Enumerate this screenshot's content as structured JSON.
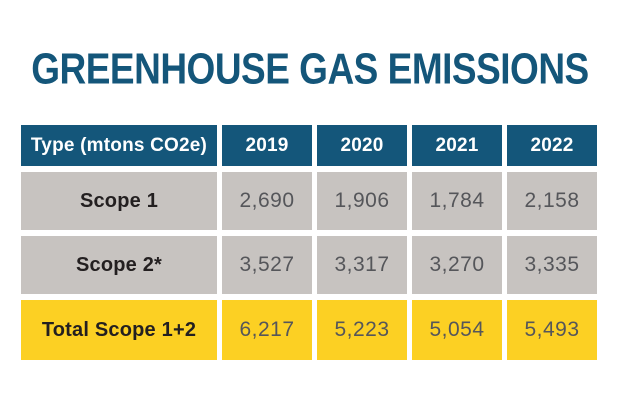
{
  "title": "GREENHOUSE GAS EMISSIONS",
  "colors": {
    "bg": "#FFFFFF",
    "navy": "#14567A",
    "gray": "#C7C3C0",
    "yellow": "#FCD023",
    "labelText": "#231F20",
    "valueText": "#55565A",
    "headerText": "#FFFFFF"
  },
  "table": {
    "header": [
      "Type (mtons CO2e)",
      "2019",
      "2020",
      "2021",
      "2022"
    ],
    "rows": [
      {
        "label": "Scope 1",
        "values": [
          "2,690",
          "1,906",
          "1,784",
          "2,158"
        ]
      },
      {
        "label": "Scope 2*",
        "values": [
          "3,527",
          "3,317",
          "3,270",
          "3,335"
        ]
      },
      {
        "label": "Total Scope 1+2",
        "values": [
          "6,217",
          "5,223",
          "5,054",
          "5,493"
        ]
      }
    ]
  },
  "chart_data": {
    "type": "table",
    "title": "GREENHOUSE GAS EMISSIONS",
    "units": "mtons CO2e",
    "columns": [
      "Type (mtons CO2e)",
      "2019",
      "2020",
      "2021",
      "2022"
    ],
    "rows": [
      {
        "label": "Scope 1",
        "values": [
          2690,
          1906,
          1784,
          2158
        ]
      },
      {
        "label": "Scope 2*",
        "values": [
          3527,
          3317,
          3270,
          3335
        ]
      },
      {
        "label": "Total Scope 1+2",
        "values": [
          6217,
          5223,
          5054,
          5493
        ]
      }
    ]
  }
}
